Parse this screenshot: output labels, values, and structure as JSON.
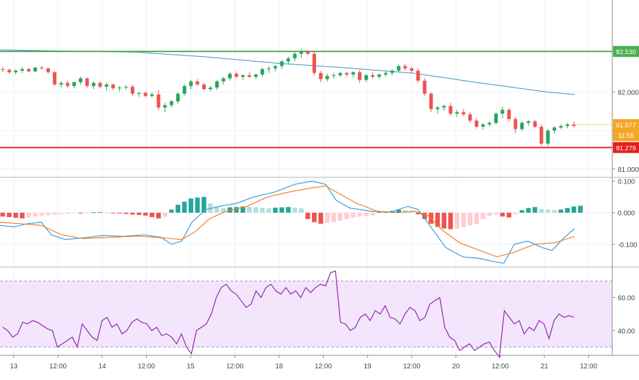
{
  "chart_data": [
    {
      "type": "candlestick",
      "title": "",
      "ylim": [
        80.9,
        83.2
      ],
      "y_ticks": [
        81.0,
        81.5,
        82.0
      ],
      "y_tick_labels": [
        "81.000",
        "81.500",
        "82.000"
      ],
      "horizontal_lines": [
        {
          "value": 82.53,
          "label": "82.530",
          "color": "#4caf50"
        },
        {
          "value": 81.279,
          "label": "81.279",
          "color": "#e91e1e"
        }
      ],
      "last_price": {
        "value": 81.577,
        "label": "81.577",
        "countdown": "11:55",
        "color": "#f5a623"
      },
      "moving_average_color": "#3a8fb7",
      "moving_average_points": [
        [
          0,
          82.55
        ],
        [
          200,
          82.52
        ],
        [
          300,
          82.46
        ],
        [
          400,
          82.38
        ],
        [
          500,
          82.32
        ],
        [
          600,
          82.25
        ],
        [
          700,
          82.12
        ],
        [
          800,
          82.0
        ],
        [
          838,
          81.97
        ]
      ],
      "ohlc": [
        [
          82.3,
          82.33,
          82.26,
          82.29
        ],
        [
          82.29,
          82.31,
          82.24,
          82.26
        ],
        [
          82.26,
          82.3,
          82.23,
          82.28
        ],
        [
          82.28,
          82.33,
          82.25,
          82.3
        ],
        [
          82.3,
          82.32,
          82.26,
          82.27
        ],
        [
          82.27,
          82.33,
          82.26,
          82.32
        ],
        [
          82.32,
          82.34,
          82.29,
          82.31
        ],
        [
          82.31,
          82.32,
          82.24,
          82.26
        ],
        [
          82.26,
          82.27,
          82.08,
          82.1
        ],
        [
          82.1,
          82.14,
          82.06,
          82.12
        ],
        [
          82.12,
          82.15,
          82.05,
          82.08
        ],
        [
          82.08,
          82.14,
          82.05,
          82.13
        ],
        [
          82.13,
          82.2,
          82.1,
          82.18
        ],
        [
          82.18,
          82.19,
          82.06,
          82.08
        ],
        [
          82.08,
          82.14,
          82.04,
          82.12
        ],
        [
          82.12,
          82.14,
          82.05,
          82.07
        ],
        [
          82.07,
          82.12,
          82.02,
          82.1
        ],
        [
          82.1,
          82.11,
          82.03,
          82.05
        ],
        [
          82.05,
          82.08,
          82.01,
          82.06
        ],
        [
          82.06,
          82.09,
          82.03,
          82.07
        ],
        [
          82.07,
          82.1,
          81.95,
          81.98
        ],
        [
          81.98,
          82.0,
          81.94,
          81.99
        ],
        [
          81.99,
          82.01,
          81.93,
          81.95
        ],
        [
          81.95,
          82.0,
          81.93,
          81.97
        ],
        [
          81.97,
          82.03,
          81.76,
          81.8
        ],
        [
          81.8,
          81.86,
          81.74,
          81.83
        ],
        [
          81.83,
          81.9,
          81.8,
          81.88
        ],
        [
          81.88,
          82.0,
          81.85,
          81.98
        ],
        [
          81.98,
          82.1,
          81.95,
          82.08
        ],
        [
          82.08,
          82.16,
          82.04,
          82.14
        ],
        [
          82.14,
          82.17,
          82.08,
          82.1
        ],
        [
          82.1,
          82.12,
          82.02,
          82.04
        ],
        [
          82.04,
          82.08,
          82.01,
          82.06
        ],
        [
          82.06,
          82.16,
          82.03,
          82.14
        ],
        [
          82.14,
          82.2,
          82.1,
          82.18
        ],
        [
          82.18,
          82.26,
          82.15,
          82.24
        ],
        [
          82.24,
          82.27,
          82.18,
          82.2
        ],
        [
          82.2,
          82.23,
          82.16,
          82.22
        ],
        [
          82.22,
          82.26,
          82.19,
          82.2
        ],
        [
          82.2,
          82.24,
          82.17,
          82.23
        ],
        [
          82.23,
          82.32,
          82.2,
          82.3
        ],
        [
          82.3,
          82.34,
          82.25,
          82.31
        ],
        [
          82.31,
          82.35,
          82.27,
          82.34
        ],
        [
          82.34,
          82.42,
          82.3,
          82.4
        ],
        [
          82.4,
          82.46,
          82.36,
          82.44
        ],
        [
          82.44,
          82.52,
          82.4,
          82.5
        ],
        [
          82.5,
          82.56,
          82.45,
          82.53
        ],
        [
          82.53,
          82.55,
          82.48,
          82.5
        ],
        [
          82.5,
          82.54,
          82.22,
          82.25
        ],
        [
          82.25,
          82.28,
          82.13,
          82.17
        ],
        [
          82.17,
          82.24,
          82.14,
          82.21
        ],
        [
          82.21,
          82.25,
          82.18,
          82.22
        ],
        [
          82.22,
          82.26,
          82.2,
          82.25
        ],
        [
          82.25,
          82.27,
          82.2,
          82.23
        ],
        [
          82.23,
          82.27,
          82.19,
          82.26
        ],
        [
          82.26,
          82.29,
          82.12,
          82.16
        ],
        [
          82.16,
          82.24,
          82.13,
          82.22
        ],
        [
          82.22,
          82.26,
          82.18,
          82.2
        ],
        [
          82.2,
          82.24,
          82.17,
          82.23
        ],
        [
          82.23,
          82.27,
          82.2,
          82.25
        ],
        [
          82.25,
          82.3,
          82.22,
          82.28
        ],
        [
          82.28,
          82.36,
          82.26,
          82.34
        ],
        [
          82.34,
          82.37,
          82.28,
          82.31
        ],
        [
          82.31,
          82.33,
          82.25,
          82.28
        ],
        [
          82.28,
          82.31,
          82.12,
          82.15
        ],
        [
          82.15,
          82.18,
          81.95,
          81.98
        ],
        [
          81.98,
          82.0,
          81.74,
          81.78
        ],
        [
          81.78,
          81.82,
          81.72,
          81.8
        ],
        [
          81.8,
          81.84,
          81.76,
          81.82
        ],
        [
          81.82,
          81.86,
          81.69,
          81.72
        ],
        [
          81.72,
          81.77,
          81.68,
          81.74
        ],
        [
          81.74,
          81.78,
          81.69,
          81.71
        ],
        [
          81.71,
          81.74,
          81.6,
          81.63
        ],
        [
          81.63,
          81.66,
          81.52,
          81.55
        ],
        [
          81.55,
          81.6,
          81.52,
          81.58
        ],
        [
          81.58,
          81.62,
          81.55,
          81.6
        ],
        [
          81.6,
          81.74,
          81.58,
          81.72
        ],
        [
          81.72,
          81.81,
          81.66,
          81.77
        ],
        [
          81.77,
          81.79,
          81.62,
          81.65
        ],
        [
          81.65,
          81.68,
          81.46,
          81.52
        ],
        [
          81.52,
          81.62,
          81.49,
          81.6
        ],
        [
          81.6,
          81.64,
          81.56,
          81.62
        ],
        [
          81.62,
          81.64,
          81.53,
          81.55
        ],
        [
          81.55,
          81.58,
          81.3,
          81.33
        ],
        [
          81.33,
          81.52,
          81.3,
          81.5
        ],
        [
          81.5,
          81.56,
          81.46,
          81.54
        ],
        [
          81.54,
          81.58,
          81.52,
          81.56
        ],
        [
          81.56,
          81.6,
          81.53,
          81.58
        ],
        [
          81.58,
          81.62,
          81.54,
          81.56
        ]
      ]
    },
    {
      "type": "macd",
      "ylim": [
        -0.17,
        0.11
      ],
      "y_ticks": [
        0.1,
        0.0,
        -0.1
      ],
      "y_tick_labels": [
        "0.100",
        "0.000",
        "-0.100"
      ],
      "series": [
        {
          "color": "#3a9bdc",
          "points": [
            [
              0,
              -0.04
            ],
            [
              20,
              -0.045
            ],
            [
              40,
              -0.035
            ],
            [
              60,
              -0.03
            ],
            [
              75,
              -0.07
            ],
            [
              95,
              -0.085
            ],
            [
              120,
              -0.08
            ],
            [
              150,
              -0.072
            ],
            [
              180,
              -0.075
            ],
            [
              210,
              -0.07
            ],
            [
              235,
              -0.078
            ],
            [
              250,
              -0.1
            ],
            [
              265,
              -0.09
            ],
            [
              280,
              -0.03
            ],
            [
              300,
              0.01
            ],
            [
              320,
              0.02
            ],
            [
              345,
              0.03
            ],
            [
              370,
              0.05
            ],
            [
              400,
              0.065
            ],
            [
              430,
              0.09
            ],
            [
              455,
              0.1
            ],
            [
              475,
              0.09
            ],
            [
              490,
              0.04
            ],
            [
              510,
              0.015
            ],
            [
              540,
              0.005
            ],
            [
              570,
              0.002
            ],
            [
              595,
              0.02
            ],
            [
              610,
              0.01
            ],
            [
              630,
              -0.05
            ],
            [
              650,
              -0.11
            ],
            [
              675,
              -0.14
            ],
            [
              700,
              -0.145
            ],
            [
              720,
              -0.155
            ],
            [
              735,
              -0.16
            ],
            [
              750,
              -0.1
            ],
            [
              770,
              -0.09
            ],
            [
              790,
              -0.11
            ],
            [
              805,
              -0.12
            ],
            [
              820,
              -0.085
            ],
            [
              838,
              -0.05
            ]
          ]
        },
        {
          "color": "#f57c1f",
          "points": [
            [
              0,
              -0.03
            ],
            [
              30,
              -0.035
            ],
            [
              60,
              -0.04
            ],
            [
              90,
              -0.07
            ],
            [
              120,
              -0.082
            ],
            [
              160,
              -0.078
            ],
            [
              200,
              -0.074
            ],
            [
              240,
              -0.08
            ],
            [
              265,
              -0.085
            ],
            [
              285,
              -0.06
            ],
            [
              305,
              -0.02
            ],
            [
              330,
              0.005
            ],
            [
              360,
              0.02
            ],
            [
              390,
              0.05
            ],
            [
              420,
              0.065
            ],
            [
              450,
              0.077
            ],
            [
              475,
              0.085
            ],
            [
              495,
              0.06
            ],
            [
              520,
              0.03
            ],
            [
              550,
              0.005
            ],
            [
              580,
              0.0
            ],
            [
              605,
              0.005
            ],
            [
              625,
              -0.01
            ],
            [
              645,
              -0.055
            ],
            [
              670,
              -0.095
            ],
            [
              700,
              -0.12
            ],
            [
              725,
              -0.14
            ],
            [
              750,
              -0.125
            ],
            [
              780,
              -0.1
            ],
            [
              810,
              -0.095
            ],
            [
              838,
              -0.075
            ]
          ]
        }
      ],
      "histogram": [
        -0.012,
        -0.014,
        -0.016,
        -0.018,
        -0.015,
        -0.012,
        -0.01,
        -0.008,
        -0.006,
        -0.004,
        -0.003,
        -0.002,
        -0.002,
        -0.001,
        0.001,
        0.002,
        0.001,
        -0.001,
        -0.002,
        -0.004,
        -0.006,
        -0.007,
        -0.009,
        -0.014,
        -0.018,
        -0.013,
        0.01,
        0.025,
        0.035,
        0.045,
        0.048,
        0.05,
        0.03,
        0.02,
        0.015,
        0.017,
        0.018,
        0.02,
        0.019,
        0.017,
        0.015,
        0.014,
        0.016,
        0.017,
        0.018,
        0.016,
        0.014,
        -0.02,
        -0.03,
        -0.035,
        -0.032,
        -0.03,
        -0.025,
        -0.02,
        -0.015,
        -0.012,
        -0.01,
        -0.008,
        0.002,
        0.004,
        0.006,
        0.01,
        0.008,
        0.005,
        -0.005,
        -0.02,
        -0.035,
        -0.045,
        -0.05,
        -0.052,
        -0.05,
        -0.045,
        -0.04,
        -0.035,
        -0.02,
        -0.01,
        -0.006,
        -0.012,
        -0.015,
        -0.005,
        0.008,
        0.015,
        0.018,
        0.012,
        0.01,
        0.008,
        0.01,
        0.015,
        0.02,
        0.022
      ],
      "histogram_colors": {
        "pos_strong": "#26a69a",
        "pos_weak": "#b2dfdb",
        "neg_strong": "#ef5350",
        "neg_weak": "#ffcdd2"
      }
    },
    {
      "type": "line",
      "ylim": [
        25,
        78
      ],
      "y_ticks": [
        60,
        40
      ],
      "y_tick_labels": [
        "60.00",
        "40.00"
      ],
      "band": [
        30,
        70
      ],
      "band_color": "#f3e5fc",
      "series": [
        {
          "color": "#8e24aa",
          "values": [
            42,
            40,
            36,
            38,
            45,
            44,
            46,
            45,
            43,
            41,
            40,
            30,
            32,
            34,
            36,
            30,
            44,
            40,
            36,
            34,
            46,
            48,
            42,
            44,
            38,
            40,
            45,
            47,
            45,
            44,
            40,
            42,
            37,
            38,
            36,
            32,
            38,
            30,
            26,
            40,
            42,
            44,
            50,
            60,
            66,
            68,
            64,
            62,
            58,
            54,
            56,
            64,
            60,
            66,
            68,
            64,
            62,
            66,
            62,
            64,
            60,
            66,
            63,
            66,
            68,
            67,
            75,
            76,
            45,
            44,
            40,
            42,
            48,
            50,
            46,
            52,
            50,
            55,
            48,
            47,
            44,
            50,
            54,
            52,
            46,
            48,
            56,
            58,
            60,
            42,
            36,
            34,
            28,
            30,
            32,
            28,
            30,
            32,
            33,
            28,
            24,
            52,
            48,
            44,
            46,
            38,
            42,
            40,
            46,
            44,
            35,
            46,
            50,
            48,
            49,
            48
          ]
        }
      ]
    }
  ],
  "x_axis": {
    "labels": [
      "13",
      "12:00",
      "14",
      "12:00",
      "15",
      "12:00",
      "18",
      "12:00",
      "19",
      "12:00",
      "20",
      "12:00",
      "21",
      "12:00"
    ]
  },
  "colors": {
    "up": "#26a65b",
    "down": "#ef5350",
    "grid": "#eef0f3",
    "axis_text": "#444444",
    "separator": "#b0b4bb"
  }
}
